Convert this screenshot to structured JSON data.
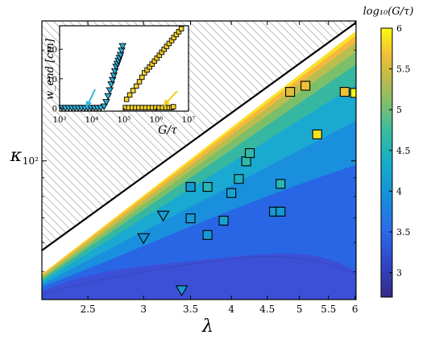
{
  "chart_data": [
    {
      "type": "scatter",
      "title": "",
      "xlabel": "λ",
      "ylabel": "κ",
      "x_scale": "log",
      "y_scale": "log",
      "xlim": [
        2.15,
        6.02
      ],
      "ylim": [
        42,
        240
      ],
      "x_ticks": [
        2.5,
        3,
        3.5,
        4,
        4.5,
        5,
        5.5,
        6
      ],
      "x_tick_labels": [
        "2.5",
        "3",
        "3.5",
        "4",
        "4.5",
        "5",
        "5.5",
        "6"
      ],
      "y_ticks": [
        100
      ],
      "y_tick_labels": [
        "10²"
      ],
      "grid": false,
      "background": "filled contours of log10(G/τ); hatched region above the black boundary line",
      "boundary_line": [
        {
          "x": 2.15,
          "y": 57
        },
        {
          "x": 6.02,
          "y": 237
        }
      ],
      "series": [
        {
          "marker": "square",
          "points": [
            {
              "x": 3.5,
              "y": 85,
              "c": 3.9
            },
            {
              "x": 3.5,
              "y": 69.8,
              "c": 3.9
            },
            {
              "x": 3.7,
              "y": 85,
              "c": 4.3
            },
            {
              "x": 3.7,
              "y": 62.9,
              "c": 3.9
            },
            {
              "x": 3.9,
              "y": 68.8,
              "c": 4.0
            },
            {
              "x": 4.0,
              "y": 81.8,
              "c": 4.0
            },
            {
              "x": 4.1,
              "y": 89.3,
              "c": 4.2
            },
            {
              "x": 4.2,
              "y": 99.7,
              "c": 4.4
            },
            {
              "x": 4.25,
              "y": 105,
              "c": 4.4
            },
            {
              "x": 4.6,
              "y": 72.8,
              "c": 3.9
            },
            {
              "x": 4.7,
              "y": 72.8,
              "c": 3.9
            },
            {
              "x": 4.7,
              "y": 86.6,
              "c": 4.3
            },
            {
              "x": 4.85,
              "y": 154,
              "c": 5.4
            },
            {
              "x": 5.1,
              "y": 160,
              "c": 5.5
            },
            {
              "x": 5.3,
              "y": 118,
              "c": 5.8
            },
            {
              "x": 5.8,
              "y": 154,
              "c": 5.5
            },
            {
              "x": 6.0,
              "y": 153,
              "c": 6.0
            }
          ]
        },
        {
          "marker": "triangle-down",
          "points": [
            {
              "x": 3.0,
              "y": 61.5,
              "c": 3.85
            },
            {
              "x": 3.2,
              "y": 70.8,
              "c": 3.9
            },
            {
              "x": 3.4,
              "y": 44.4,
              "c": 3.9
            }
          ]
        }
      ]
    },
    {
      "type": "colorbar",
      "label": "log₁₀(G/τ)",
      "range": [
        2.7,
        6.0
      ],
      "ticks": [
        3,
        3.5,
        4,
        4.5,
        5,
        5.5,
        6
      ],
      "tick_labels": [
        "3",
        "3.5",
        "4",
        "4.5",
        "5",
        "5.5",
        "6"
      ]
    },
    {
      "type": "scatter",
      "title": "",
      "xlabel": "G/τ",
      "ylabel": "w_end [cm]",
      "x_scale": "log",
      "y_scale": "linear",
      "xlim": [
        1000,
        10000000
      ],
      "ylim": [
        -1,
        28
      ],
      "x_ticks": [
        1000,
        10000,
        100000,
        1000000,
        10000000
      ],
      "x_tick_labels": [
        "10³",
        "10⁴",
        "10⁵",
        "10⁶",
        "10⁷"
      ],
      "y_ticks": [
        0,
        10,
        20
      ],
      "y_tick_labels": [
        "0",
        "10",
        "20"
      ],
      "annotations": [
        {
          "kind": "arrow",
          "color": "#2fb5e0",
          "points_to": {
            "x": 25000,
            "y": 0
          }
        },
        {
          "kind": "arrow",
          "color": "#f2cd17",
          "points_to": {
            "x": 2800000,
            "y": 0
          }
        }
      ],
      "series": [
        {
          "marker": "triangle-down",
          "color": "#2ab2dd",
          "points": [
            [
              1200,
              0
            ],
            [
              1500,
              0
            ],
            [
              1900,
              0
            ],
            [
              2400,
              0
            ],
            [
              3000,
              0
            ],
            [
              3800,
              0
            ],
            [
              4800,
              0
            ],
            [
              6000,
              0
            ],
            [
              7500,
              0
            ],
            [
              9500,
              0
            ],
            [
              12000,
              0
            ],
            [
              15000,
              0
            ],
            [
              19000,
              0
            ],
            [
              24000,
              0.5
            ],
            [
              28000,
              2
            ],
            [
              32000,
              4
            ],
            [
              36000,
              6
            ],
            [
              40000,
              8
            ],
            [
              44000,
              9.5
            ],
            [
              48000,
              11
            ],
            [
              52000,
              12.5
            ],
            [
              57000,
              14
            ],
            [
              62000,
              15
            ],
            [
              67000,
              16
            ],
            [
              72000,
              17
            ],
            [
              78000,
              18
            ],
            [
              84000,
              19.5
            ],
            [
              90000,
              21
            ]
          ]
        },
        {
          "marker": "square",
          "color": "#f3d22a",
          "points": [
            [
              110000,
              0.2
            ],
            [
              140000,
              0.2
            ],
            [
              180000,
              0.2
            ],
            [
              230000,
              0.2
            ],
            [
              290000,
              0.2
            ],
            [
              370000,
              0.2
            ],
            [
              470000,
              0.2
            ],
            [
              600000,
              0.2
            ],
            [
              760000,
              0.2
            ],
            [
              970000,
              0.2
            ],
            [
              1230000,
              0.2
            ],
            [
              1560000,
              0.2
            ],
            [
              2000000,
              0.2
            ],
            [
              2500000,
              0.2
            ],
            [
              3000000,
              0.2
            ],
            [
              3400000,
              0.5
            ]
          ]
        },
        {
          "marker": "square",
          "color": "#f3d22a",
          "points": [
            [
              120000,
              3
            ],
            [
              150000,
              4.5
            ],
            [
              190000,
              6
            ],
            [
              240000,
              7.5
            ],
            [
              300000,
              9
            ],
            [
              360000,
              10.5
            ],
            [
              430000,
              12
            ],
            [
              520000,
              13
            ],
            [
              620000,
              14
            ],
            [
              740000,
              15
            ],
            [
              880000,
              16
            ],
            [
              1050000,
              17
            ],
            [
              1250000,
              18
            ],
            [
              1480000,
              19
            ],
            [
              1750000,
              20
            ],
            [
              2100000,
              21
            ],
            [
              2500000,
              22
            ],
            [
              3000000,
              23
            ],
            [
              3500000,
              24
            ],
            [
              4200000,
              25
            ],
            [
              5000000,
              26
            ],
            [
              6000000,
              27
            ]
          ]
        }
      ]
    }
  ]
}
